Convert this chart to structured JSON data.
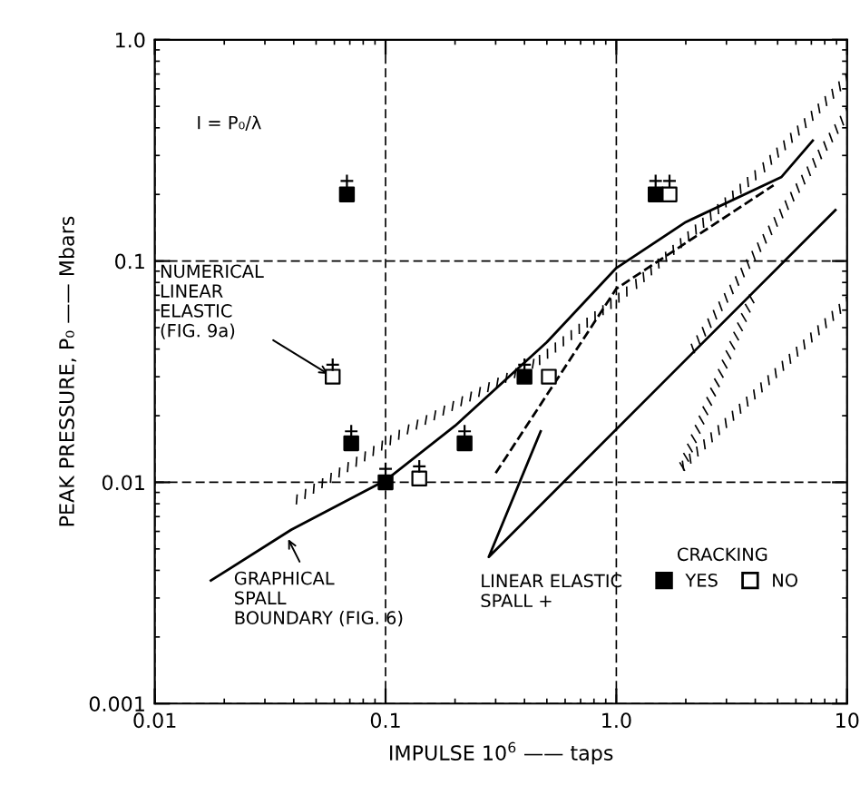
{
  "chart_data": {
    "type": "scatter",
    "xlabel": "IMPULSE 10$^{6}$ —— taps",
    "ylabel": "PEAK PRESSURE, P₀ —— Mbars",
    "log": "xy",
    "xlim": [
      0.01,
      10
    ],
    "ylim": [
      0.001,
      1.0
    ],
    "xticks": [
      0.01,
      0.1,
      {
        "value": 1,
        "label": "1.0"
      },
      10
    ],
    "yticks": [
      0.001,
      0.01,
      0.1,
      {
        "value": 1,
        "label": "1.0"
      }
    ],
    "grid": true,
    "legend": "bottom right",
    "legend_title": "CRACKING",
    "series": [
      {
        "name": "YES",
        "marker": "square",
        "color": "#000000",
        "x": [
          0.068,
          1.48,
          0.071,
          0.1,
          0.22,
          0.4
        ],
        "values": [
          0.2,
          0.2,
          0.015,
          0.01,
          0.015,
          0.03
        ]
      },
      {
        "name": "NO",
        "marker": "square",
        "color": "#ffffff",
        "x": [
          1.7,
          0.059,
          0.14,
          0.51
        ],
        "values": [
          0.2,
          0.03,
          0.0104,
          0.03
        ]
      },
      {
        "marker": "cross",
        "color": "#000000",
        "x": [
          0.068,
          1.48,
          1.7,
          0.059,
          0.071,
          0.1,
          0.14,
          0.22,
          0.4
        ],
        "values": [
          0.23,
          0.23,
          0.23,
          0.034,
          0.017,
          0.0115,
          0.0118,
          0.017,
          0.034
        ]
      },
      {
        "type": "line",
        "line_style": "solid",
        "color": "#000000",
        "x": [
          0.0175,
          0.039,
          0.1,
          0.2,
          0.5,
          1.0,
          2.0,
          5.2,
          7.1
        ],
        "values": [
          0.0036,
          0.0061,
          0.0102,
          0.018,
          0.043,
          0.093,
          0.15,
          0.24,
          0.35
        ]
      },
      {
        "type": "line",
        "line_style": "dashed",
        "color": "#000000",
        "x": [
          0.3,
          1.0,
          4.8
        ],
        "values": [
          0.011,
          0.075,
          0.22
        ]
      },
      {
        "type": "line",
        "line_style": "solid",
        "color": "#000000",
        "x": [
          0.47,
          0.28,
          8.9
        ],
        "values": [
          0.017,
          0.0046,
          0.17
        ]
      }
    ],
    "annotations": [
      "I = P₀/λ",
      {
        "text": "NUMERICAL\nLINEAR\nELASTIC\n(FIG. 9a)",
        "x": 0.059,
        "y": 0.03
      },
      {
        "text": "GRAPHICAL\nSPALL\nBOUNDARY (FIG. 6)",
        "x": 0.037,
        "y": 0.0058
      },
      "LINEAR ELASTIC\nSPALL +"
    ]
  }
}
